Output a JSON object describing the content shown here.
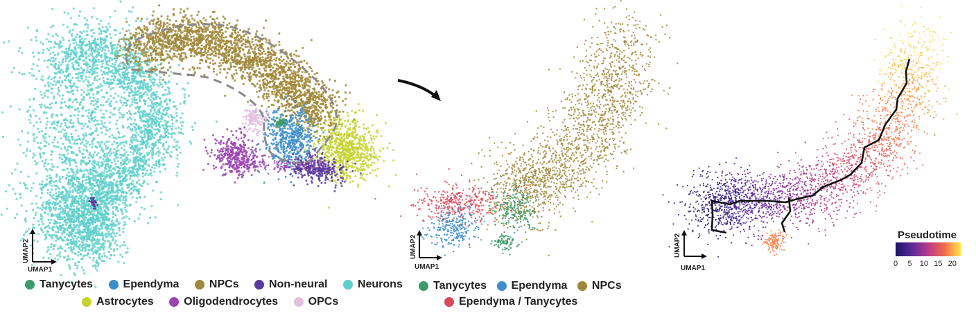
{
  "chart_data": [
    {
      "type": "scatter",
      "xlabel": "UMAP1",
      "ylabel": "UMAP2",
      "legend": "bottom",
      "series": [
        {
          "name": "Tanycytes",
          "color": "#3d9a6c"
        },
        {
          "name": "Ependyma",
          "color": "#3d8fc8"
        },
        {
          "name": "NPCs",
          "color": "#a0883a"
        },
        {
          "name": "Non-neural",
          "color": "#5b3aa0"
        },
        {
          "name": "Neurons",
          "color": "#5fcfca"
        },
        {
          "name": "Astrocytes",
          "color": "#c6d42f"
        },
        {
          "name": "Oligodendrocytes",
          "color": "#9b44b0"
        },
        {
          "name": "OPCs",
          "color": "#e2bfe0"
        }
      ]
    },
    {
      "type": "scatter",
      "xlabel": "UMAP1",
      "ylabel": "UMAP2",
      "legend": "bottom",
      "series": [
        {
          "name": "Tanycytes",
          "color": "#3d9a6c"
        },
        {
          "name": "Ependyma",
          "color": "#3d8fc8"
        },
        {
          "name": "NPCs",
          "color": "#a0883a"
        },
        {
          "name": "Ependyma / Tanycytes",
          "color": "#d9485a"
        }
      ]
    },
    {
      "type": "scatter",
      "xlabel": "UMAP1",
      "ylabel": "UMAP2",
      "colorbar": {
        "title": "Pseudotime",
        "ticks": [
          0,
          5,
          10,
          15,
          20
        ],
        "range": [
          0,
          23
        ]
      }
    }
  ],
  "legends": {
    "p1_row1": [
      "Tanycytes",
      "Ependyma",
      "NPCs",
      "Non-neural",
      "Neurons"
    ],
    "p1_row2": [
      "Astrocytes",
      "Oligodendrocytes",
      "OPCs"
    ],
    "p2_row1": [
      "Tanycytes",
      "Ependyma",
      "NPCs"
    ],
    "p2_row2": [
      "Ependyma / Tanycytes"
    ]
  }
}
